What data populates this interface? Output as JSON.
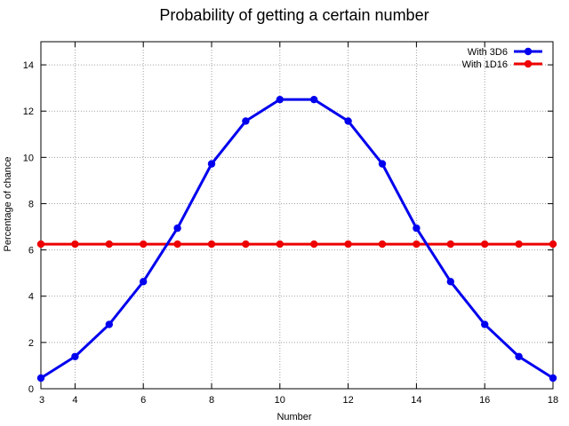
{
  "chart_data": {
    "type": "line",
    "title": "Probability of getting a certain number",
    "xlabel": "Number",
    "ylabel": "Percentage of chance",
    "xlim": [
      3,
      18
    ],
    "ylim": [
      0,
      15
    ],
    "x_ticks": [
      4,
      6,
      8,
      10,
      12,
      14,
      16,
      18
    ],
    "y_ticks": [
      0,
      2,
      4,
      6,
      8,
      10,
      12,
      14
    ],
    "grid": true,
    "legend_position": "top-right",
    "x": [
      3,
      4,
      5,
      6,
      7,
      8,
      9,
      10,
      11,
      12,
      13,
      14,
      15,
      16,
      17,
      18
    ],
    "series": [
      {
        "name": "With 3D6",
        "color": "#0000ee",
        "values": [
          0.46,
          1.39,
          2.78,
          4.63,
          6.94,
          9.72,
          11.57,
          12.5,
          12.5,
          11.57,
          9.72,
          6.94,
          4.63,
          2.78,
          1.39,
          0.46
        ]
      },
      {
        "name": "With 1D16",
        "color": "#ee0000",
        "values": [
          6.25,
          6.25,
          6.25,
          6.25,
          6.25,
          6.25,
          6.25,
          6.25,
          6.25,
          6.25,
          6.25,
          6.25,
          6.25,
          6.25,
          6.25,
          6.25
        ]
      }
    ]
  }
}
